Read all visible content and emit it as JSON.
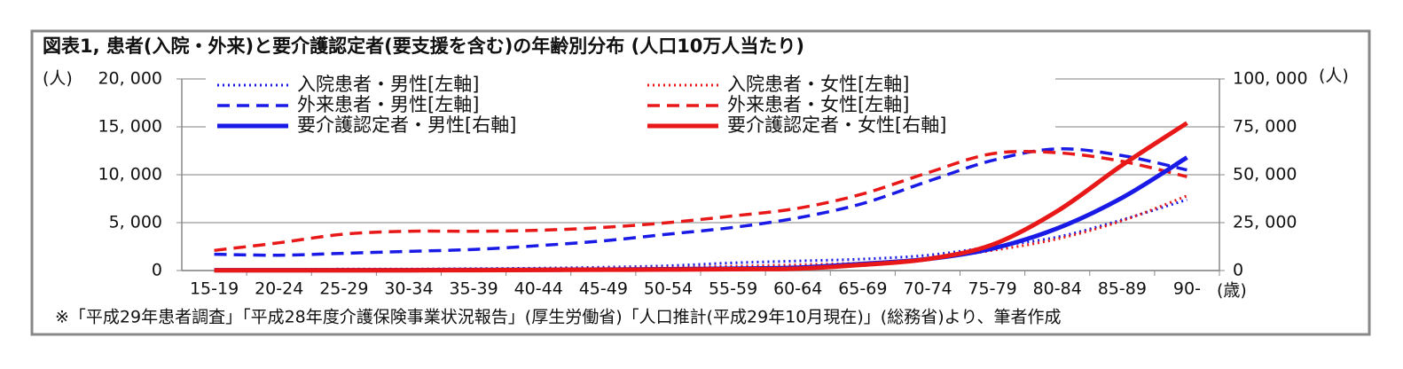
{
  "chart_data": {
    "type": "line",
    "title": "図表1, 患者(入院・外来)と要介護認定者(要支援を含む)の年齢別分布 (人口10万人当たり)",
    "y_label": "(人)",
    "y2_label": "(人)",
    "x_label": "(歳)",
    "note": "※「平成29年患者調査」「平成28年度介護保険事業状況報告」(厚生労働省)「人口推計(平成29年10月現在)」(総務省)より、筆者作成",
    "categories": [
      "15-19",
      "20-24",
      "25-29",
      "30-34",
      "35-39",
      "40-44",
      "45-49",
      "50-54",
      "55-59",
      "60-64",
      "65-69",
      "70-74",
      "75-79",
      "80-84",
      "85-89",
      "90-"
    ],
    "ylim": [
      0,
      20000
    ],
    "yticks": [
      {
        "value": 0,
        "label": "0"
      },
      {
        "value": 5000,
        "label": "5, 000"
      },
      {
        "value": 10000,
        "label": "10, 000"
      },
      {
        "value": 15000,
        "label": "15, 000"
      },
      {
        "value": 20000,
        "label": "20, 000"
      }
    ],
    "y2lim": [
      0,
      100000
    ],
    "y2ticks": [
      {
        "value": 0,
        "label": "0"
      },
      {
        "value": 25000,
        "label": "25, 000"
      },
      {
        "value": 50000,
        "label": "50, 000"
      },
      {
        "value": 75000,
        "label": "75, 000"
      },
      {
        "value": 100000,
        "label": "100, 000"
      }
    ],
    "grid": true,
    "series": [
      {
        "name": "入院患者・男性[左軸]",
        "color": "#1a1ae6",
        "style": "dotted",
        "values": [
          100,
          100,
          150,
          150,
          200,
          250,
          350,
          500,
          800,
          1000,
          1200,
          1600,
          2500,
          3500,
          5300,
          7400
        ]
      },
      {
        "name": "入院患者・女性[左軸]",
        "color": "#e81818",
        "style": "dotted",
        "values": [
          50,
          100,
          150,
          150,
          150,
          200,
          250,
          300,
          450,
          600,
          800,
          1200,
          2100,
          3300,
          5200,
          7800
        ]
      },
      {
        "name": "外来患者・男性[左軸]",
        "color": "#1a1ae6",
        "style": "dashed",
        "values": [
          1700,
          1600,
          1800,
          2000,
          2200,
          2600,
          3100,
          3800,
          4500,
          5500,
          7000,
          9300,
          11500,
          12700,
          12000,
          10500
        ]
      },
      {
        "name": "外来患者・女性[左軸]",
        "color": "#e81818",
        "style": "dashed",
        "values": [
          2100,
          2900,
          3800,
          4100,
          4100,
          4200,
          4500,
          5000,
          5700,
          6500,
          8000,
          10200,
          12200,
          12300,
          11400,
          9800
        ]
      },
      {
        "name": "要介護認定者・男性[右軸]",
        "color": "#1a1ae6",
        "style": "solid",
        "axis": "y2",
        "values": [
          200,
          200,
          200,
          200,
          300,
          400,
          500,
          700,
          1000,
          1500,
          3500,
          6000,
          11500,
          22000,
          38000,
          59000
        ]
      },
      {
        "name": "要介護認定者・女性[右軸]",
        "color": "#e81818",
        "style": "solid",
        "axis": "y2",
        "values": [
          100,
          100,
          100,
          100,
          200,
          300,
          400,
          500,
          700,
          1000,
          3000,
          6000,
          13500,
          31000,
          55000,
          77000
        ]
      }
    ]
  }
}
